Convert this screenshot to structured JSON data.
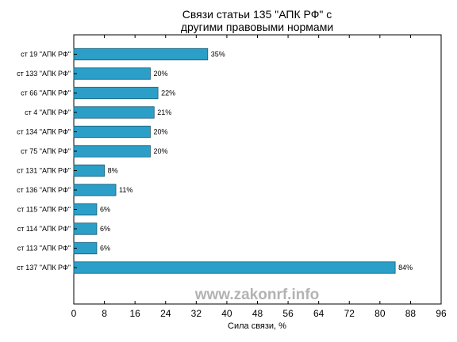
{
  "chart_data": {
    "type": "bar",
    "orientation": "horizontal",
    "title_lines": [
      "Связи статьи 135 \"АПК РФ\" с",
      "другими правовыми нормами"
    ],
    "categories": [
      "ст 19 \"АПК РФ\"",
      "ст 133 \"АПК РФ\"",
      "ст 66 \"АПК РФ\"",
      "ст 4 \"АПК РФ\"",
      "ст 134 \"АПК РФ\"",
      "ст 75 \"АПК РФ\"",
      "ст 131 \"АПК РФ\"",
      "ст 136 \"АПК РФ\"",
      "ст 115 \"АПК РФ\"",
      "ст 114 \"АПК РФ\"",
      "ст 113 \"АПК РФ\"",
      "ст 137 \"АПК РФ\""
    ],
    "values": [
      35,
      20,
      22,
      21,
      20,
      20,
      8,
      11,
      6,
      6,
      6,
      84
    ],
    "value_labels": [
      "35%",
      "20%",
      "22%",
      "21%",
      "20%",
      "20%",
      "8%",
      "11%",
      "6%",
      "6%",
      "6%",
      "84%"
    ],
    "xlabel": "Сила связи, %",
    "xlim": [
      0,
      96
    ],
    "xticks": [
      "0",
      "8",
      "16",
      "24",
      "32",
      "40",
      "48",
      "56",
      "64",
      "72",
      "80",
      "88",
      "96"
    ],
    "bar_color": "#2b9fc8",
    "bar_edge_color": "#1a5a73",
    "grid": false,
    "watermark": "www.zakonrf.info"
  }
}
